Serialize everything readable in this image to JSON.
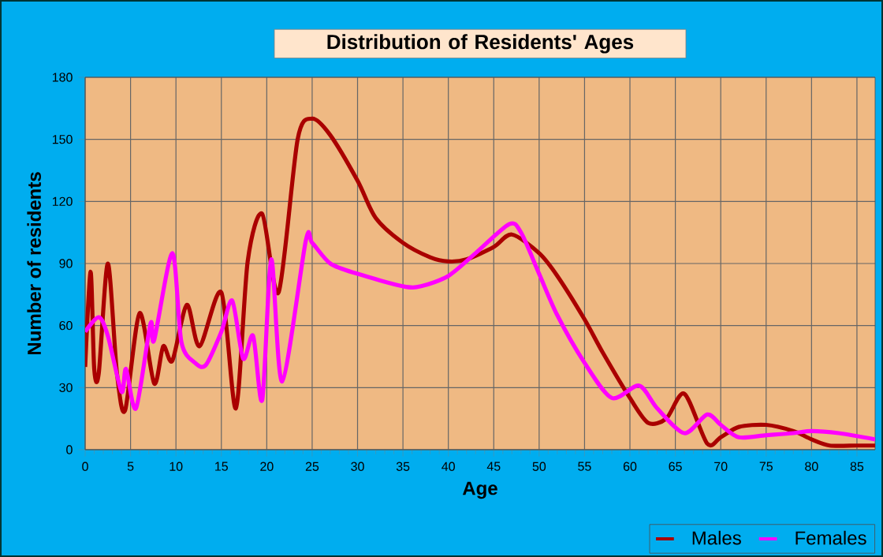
{
  "chart_data": {
    "type": "line",
    "title": "Distribution of Residents' Ages",
    "xlabel": "Age",
    "ylabel": "Number of residents",
    "xlim": [
      0,
      87
    ],
    "xticks": [
      0,
      5,
      10,
      15,
      20,
      25,
      30,
      35,
      40,
      45,
      50,
      55,
      60,
      65,
      70,
      75,
      80,
      85
    ],
    "ylim": [
      0,
      180
    ],
    "yticks": [
      0,
      30,
      60,
      90,
      120,
      150,
      180
    ],
    "grid": true,
    "legend": "bottom right",
    "marker": "none",
    "line_style": "solid",
    "series": [
      {
        "name": "Males",
        "color": "#aa0000",
        "x": [
          0,
          0.6,
          1,
          1.5,
          2.5,
          3.5,
          4.4,
          6,
          7.6,
          8.6,
          9.6,
          11.2,
          12.6,
          15,
          16.6,
          17.9,
          19.5,
          21.3,
          23.4,
          25,
          27,
          30,
          32,
          35,
          38,
          40,
          42,
          45,
          47,
          50,
          52,
          55,
          57,
          60,
          62,
          64,
          66,
          68.5,
          70,
          72,
          75,
          78,
          80,
          82,
          85,
          87
        ],
        "values": [
          40,
          86,
          39,
          37,
          90,
          37,
          19,
          66,
          32,
          50,
          43,
          70,
          50,
          76,
          20,
          91,
          114,
          76,
          150,
          160,
          152,
          130,
          112,
          100,
          93,
          91,
          92,
          98,
          104,
          95,
          84,
          63,
          47,
          25,
          13,
          15,
          27,
          3,
          6,
          11,
          12,
          9,
          5,
          2,
          2,
          2
        ]
      },
      {
        "name": "Females",
        "color": "#ff00ff",
        "x": [
          0,
          1.5,
          2.5,
          4,
          4.5,
          5.6,
          7.2,
          7.6,
          9.6,
          10.6,
          12.1,
          13.3,
          15,
          16.2,
          17.4,
          18.5,
          19.5,
          20.5,
          21.7,
          24.3,
          25,
          27,
          30,
          35,
          37,
          40,
          43,
          46.7,
          48,
          50,
          52,
          55,
          58,
          61,
          63,
          66,
          68.5,
          70,
          72,
          75,
          78,
          80,
          83,
          87
        ],
        "values": [
          57,
          64,
          55,
          28,
          39,
          20,
          61,
          53,
          95,
          52,
          42,
          41,
          57,
          72,
          44,
          55,
          24,
          92,
          33,
          101,
          100,
          90,
          85,
          79,
          79,
          84,
          95,
          109,
          105,
          85,
          65,
          42,
          25,
          31,
          20,
          8,
          17,
          12,
          6,
          7,
          8,
          9,
          8,
          5
        ]
      }
    ]
  }
}
